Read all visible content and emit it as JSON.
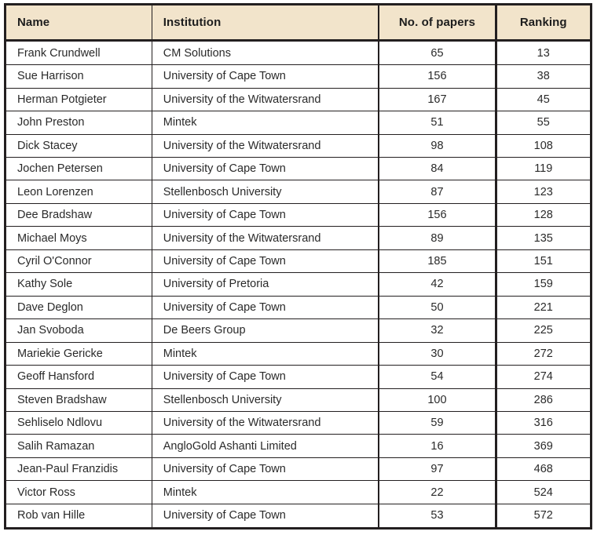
{
  "colors": {
    "header_bg": "#f2e4cb",
    "border": "#231f20",
    "text": "#2a2a2a",
    "row_bg": "#ffffff"
  },
  "chart_data": {
    "type": "table",
    "title": "",
    "columns": [
      "Name",
      "Institution",
      "No. of papers",
      "Ranking"
    ],
    "column_ids": [
      "name",
      "institution",
      "papers",
      "ranking"
    ],
    "column_align": [
      "left",
      "left",
      "center",
      "center"
    ],
    "rows": [
      [
        "Frank Crundwell",
        "CM Solutions",
        65,
        13
      ],
      [
        "Sue Harrison",
        "University of Cape Town",
        156,
        38
      ],
      [
        "Herman Potgieter",
        "University of the Witwatersrand",
        167,
        45
      ],
      [
        "John Preston",
        "Mintek",
        51,
        55
      ],
      [
        "Dick Stacey",
        "University of the Witwatersrand",
        98,
        108
      ],
      [
        "Jochen Petersen",
        "University of Cape Town",
        84,
        119
      ],
      [
        "Leon Lorenzen",
        "Stellenbosch University",
        87,
        123
      ],
      [
        "Dee Bradshaw",
        "University of Cape Town",
        156,
        128
      ],
      [
        "Michael Moys",
        "University of the Witwatersrand",
        89,
        135
      ],
      [
        "Cyril O'Connor",
        "University of Cape Town",
        185,
        151
      ],
      [
        "Kathy Sole",
        "University of Pretoria",
        42,
        159
      ],
      [
        "Dave Deglon",
        "University of Cape Town",
        50,
        221
      ],
      [
        "Jan Svoboda",
        "De Beers Group",
        32,
        225
      ],
      [
        "Mariekie Gericke",
        "Mintek",
        30,
        272
      ],
      [
        "Geoff Hansford",
        "University of Cape Town",
        54,
        274
      ],
      [
        "Steven Bradshaw",
        "Stellenbosch University",
        100,
        286
      ],
      [
        "Sehliselo Ndlovu",
        "University of the Witwatersrand",
        59,
        316
      ],
      [
        "Salih Ramazan",
        "AngloGold Ashanti Limited",
        16,
        369
      ],
      [
        "Jean-Paul Franzidis",
        "University of Cape Town",
        97,
        468
      ],
      [
        "Victor Ross",
        "Mintek",
        22,
        524
      ],
      [
        "Rob van Hille",
        "University of Cape Town",
        53,
        572
      ]
    ]
  }
}
